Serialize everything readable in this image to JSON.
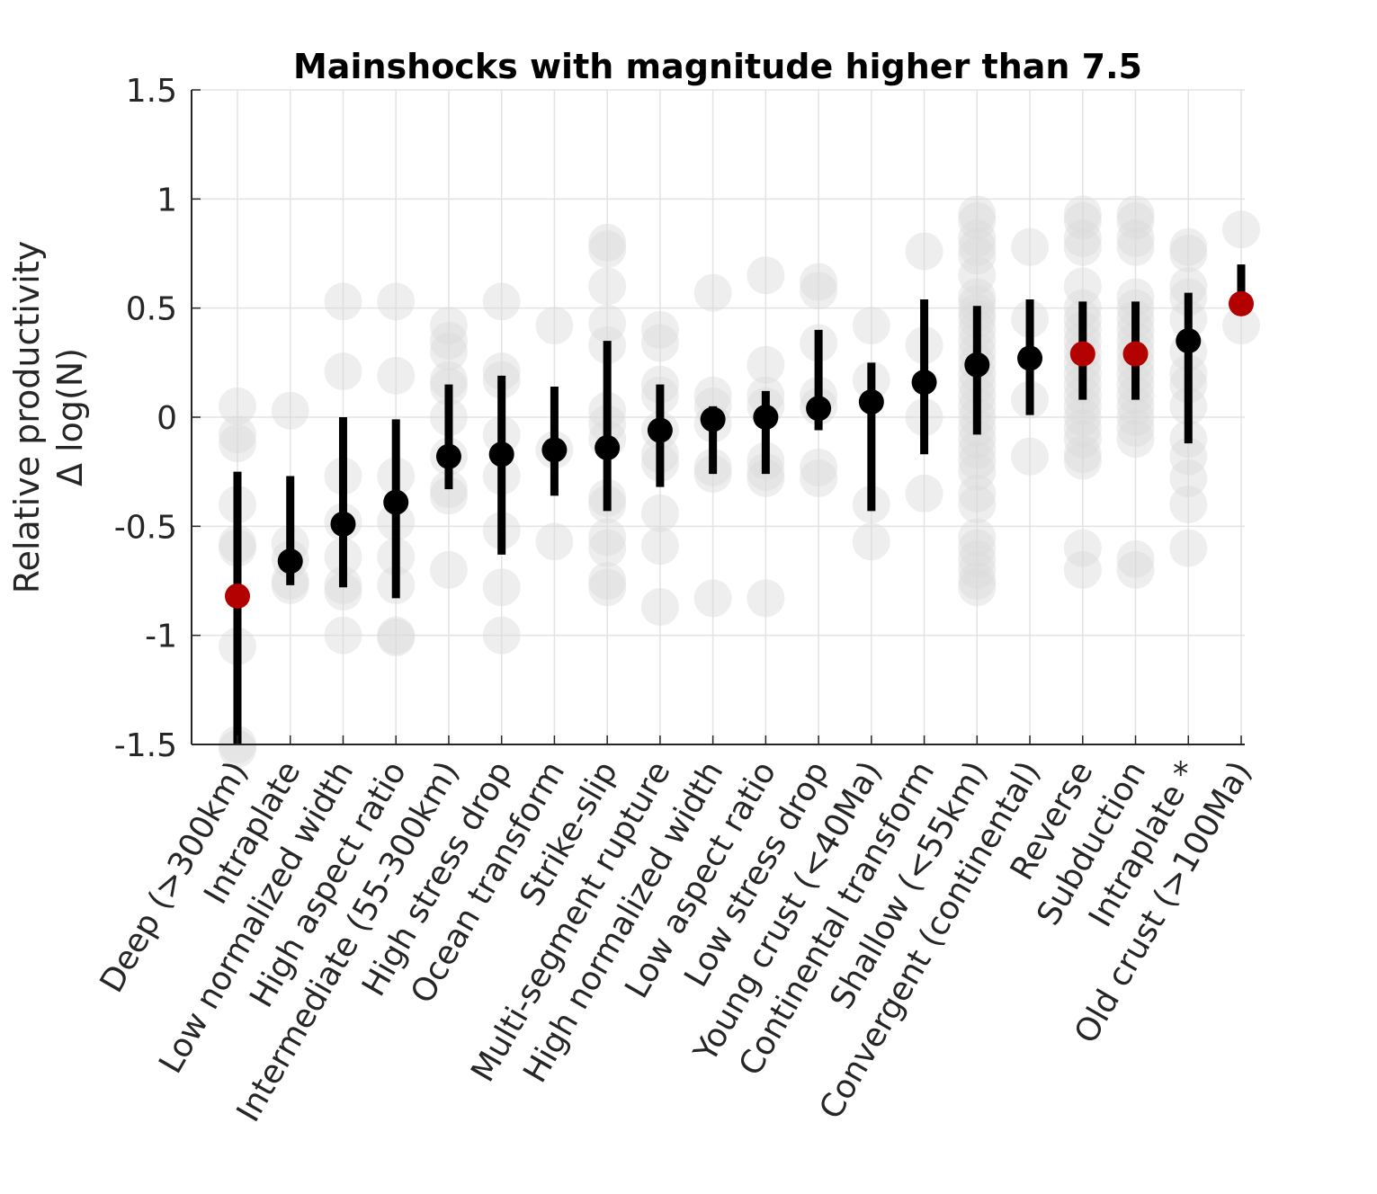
{
  "chart_data": {
    "type": "scatter",
    "title": "Mainshocks with magnitude higher than 7.5",
    "ylabel_line1": "Relative productivity",
    "ylabel_line2": "Δ log(N)",
    "xlabel": "",
    "ylim": [
      -1.5,
      1.5
    ],
    "yticks": [
      1.5,
      1,
      0.5,
      0,
      -0.5,
      -1,
      -1.5
    ],
    "ytick_labels": [
      "1.5",
      "1",
      "0.5",
      "0",
      "-0.5",
      "-1",
      "-1.5"
    ],
    "grid": true,
    "colors": {
      "mean_default": "#000000",
      "mean_highlight": "#b30000",
      "errorbar": "#000000",
      "individual": "#d9d9d9",
      "grid": "#e3e3e3",
      "axis": "#262626"
    },
    "categories": [
      "Deep (>300km)",
      "Intraplate",
      "Low normalized width",
      "High aspect ratio",
      "Intermediate (55-300km)",
      "High stress drop",
      "Ocean transform",
      "Strike-slip",
      "Multi-segment rupture",
      "High normalized width",
      "Low aspect ratio",
      "Low stress drop",
      "Young crust (<40Ma)",
      "Continental transform",
      "Shallow (<55km)",
      "Convergent (continental)",
      "Reverse",
      "Subduction",
      "Intraplate *",
      "Old crust (>100Ma)"
    ],
    "means": [
      -0.82,
      -0.66,
      -0.49,
      -0.39,
      -0.18,
      -0.17,
      -0.15,
      -0.14,
      -0.06,
      -0.01,
      0.0,
      0.04,
      0.07,
      0.16,
      0.24,
      0.27,
      0.29,
      0.29,
      0.35,
      0.52
    ],
    "error_low": [
      -1.5,
      -0.77,
      -0.78,
      -0.83,
      -0.33,
      -0.63,
      -0.36,
      -0.43,
      -0.32,
      -0.26,
      -0.26,
      -0.06,
      -0.43,
      -0.17,
      -0.08,
      0.01,
      0.08,
      0.08,
      -0.12,
      0.52
    ],
    "error_high": [
      -0.25,
      -0.27,
      0.0,
      -0.01,
      0.15,
      0.19,
      0.14,
      0.35,
      0.15,
      0.05,
      0.12,
      0.4,
      0.25,
      0.54,
      0.51,
      0.54,
      0.53,
      0.53,
      0.57,
      0.7
    ],
    "highlighted": [
      true,
      false,
      false,
      false,
      false,
      false,
      false,
      false,
      false,
      false,
      false,
      false,
      false,
      false,
      false,
      false,
      true,
      true,
      false,
      true
    ],
    "individual_values": [
      [
        0.05,
        -0.08,
        -0.12,
        -0.4,
        -0.58,
        -0.6,
        -1.05,
        -1.5,
        -1.52
      ],
      [
        0.03,
        -0.58,
        -0.65,
        -0.75,
        -0.77
      ],
      [
        0.53,
        0.21,
        -0.27,
        -0.48,
        -0.64,
        -0.77,
        -0.8,
        -1.0
      ],
      [
        0.53,
        0.19,
        -0.27,
        -0.48,
        -0.64,
        -0.77,
        -1.0,
        -1.01
      ],
      [
        0.42,
        0.35,
        0.3,
        0.17,
        0.14,
        0.0,
        -0.18,
        -0.33,
        -0.36,
        -0.7
      ],
      [
        0.53,
        0.21,
        0.17,
        -0.08,
        -0.27,
        -0.52,
        -0.78,
        -1.0
      ],
      [
        0.42,
        -0.15,
        -0.57
      ],
      [
        0.8,
        0.77,
        0.6,
        0.43,
        0.33,
        0.03,
        -0.03,
        -0.1,
        -0.37,
        -0.4,
        -0.55,
        -0.6,
        -0.75,
        -0.78
      ],
      [
        0.4,
        0.34,
        0.15,
        0.1,
        -0.06,
        -0.17,
        -0.21,
        -0.44,
        -0.59,
        -0.87
      ],
      [
        0.57,
        0.1,
        0.05,
        -0.03,
        -0.23,
        -0.26,
        -0.83
      ],
      [
        0.65,
        0.24,
        0.1,
        0.05,
        -0.2,
        -0.25,
        -0.28,
        -0.83
      ],
      [
        0.62,
        0.58,
        0.34,
        0.1,
        0.05,
        -0.23,
        -0.28
      ],
      [
        0.42,
        0.17,
        -0.4,
        -0.57
      ],
      [
        0.76,
        0.33,
        0.0,
        -0.35
      ],
      [
        0.93,
        0.9,
        0.82,
        0.78,
        0.74,
        0.65,
        0.55,
        0.52,
        0.48,
        0.45,
        0.4,
        0.35,
        0.3,
        0.25,
        0.2,
        0.15,
        0.1,
        0.05,
        0.0,
        -0.05,
        -0.1,
        -0.15,
        -0.2,
        -0.25,
        -0.35,
        -0.4,
        -0.55,
        -0.6,
        -0.65,
        -0.7,
        -0.75,
        -0.78
      ],
      [
        0.78,
        0.45,
        0.08,
        -0.18
      ],
      [
        0.93,
        0.9,
        0.82,
        0.78,
        0.6,
        0.5,
        0.45,
        0.4,
        0.35,
        0.3,
        0.25,
        0.2,
        0.15,
        0.1,
        0.05,
        0.0,
        -0.05,
        -0.1,
        -0.17,
        -0.2,
        -0.6,
        -0.7
      ],
      [
        0.93,
        0.9,
        0.82,
        0.78,
        0.55,
        0.5,
        0.45,
        0.4,
        0.35,
        0.3,
        0.25,
        0.2,
        0.15,
        0.1,
        0.05,
        0.0,
        -0.05,
        -0.1,
        -0.65,
        -0.7
      ],
      [
        0.78,
        0.75,
        0.6,
        0.55,
        0.45,
        0.3,
        0.2,
        0.15,
        0.05,
        -0.1,
        -0.18,
        -0.28,
        -0.4,
        -0.6
      ],
      [
        0.86,
        0.42
      ]
    ]
  }
}
